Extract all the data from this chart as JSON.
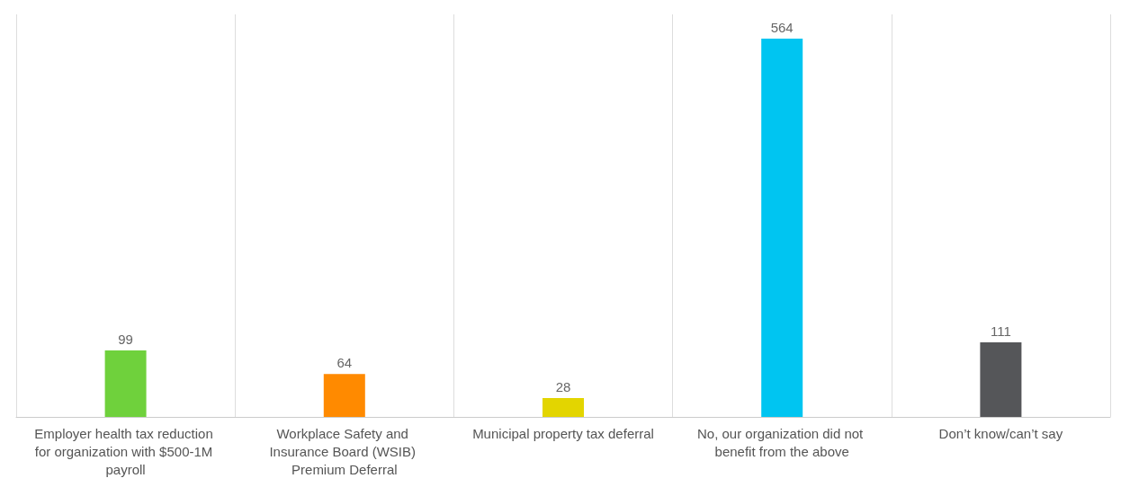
{
  "chart_data": {
    "type": "bar",
    "categories": [
      "Employer health tax reduction for organization with $500-1M payroll",
      "Workplace Safety and Insurance Board (WSIB) Premium Deferral",
      "Municipal property tax deferral",
      "No, our organization did not benefit from the above",
      "Don’t know/can’t say"
    ],
    "values": [
      99,
      64,
      28,
      564,
      111
    ],
    "colors": [
      "#6fd13c",
      "#ff8a00",
      "#e3d500",
      "#00c5f1",
      "#555659"
    ],
    "data_labels": true,
    "grid": "x"
  }
}
